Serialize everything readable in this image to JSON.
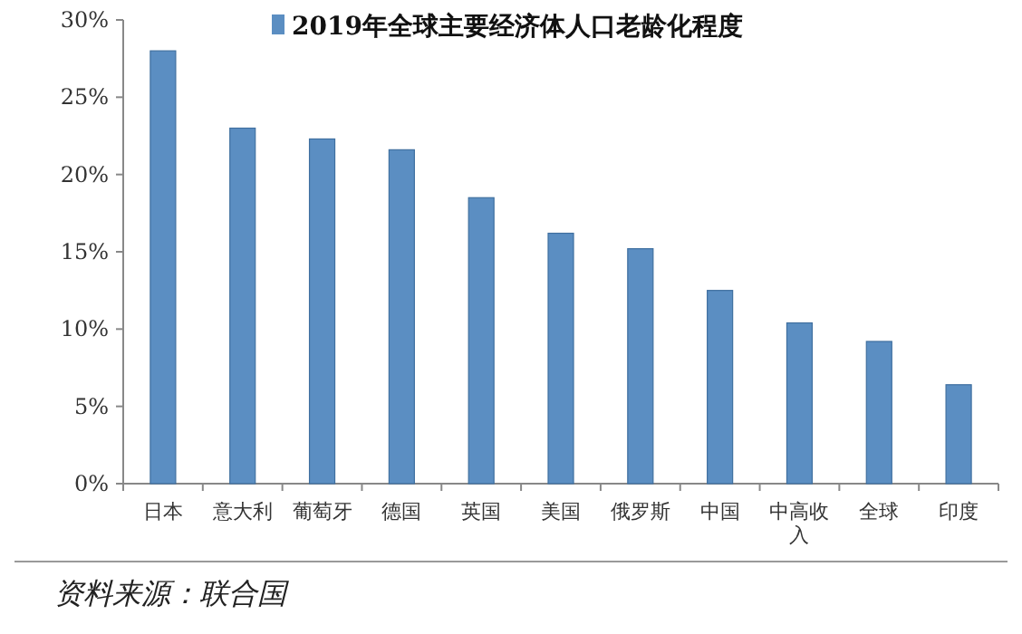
{
  "chart_data": {
    "type": "bar",
    "categories": [
      "日本",
      "意大利",
      "葡萄牙",
      "德国",
      "英国",
      "美国",
      "俄罗斯",
      "中国",
      "中高收入",
      "全球",
      "印度"
    ],
    "series": [
      {
        "name": "2019年全球主要经济体人口老龄化程度",
        "color": "#5b8ec2",
        "values": [
          28.0,
          23.0,
          22.3,
          21.6,
          18.5,
          16.2,
          15.2,
          12.5,
          10.4,
          9.2,
          6.4
        ]
      }
    ],
    "ylim": [
      0,
      30
    ],
    "yticks": [
      {
        "value": 0,
        "label": "0%"
      },
      {
        "value": 5,
        "label": "5%"
      },
      {
        "value": 10,
        "label": "10%"
      },
      {
        "value": 15,
        "label": "15%"
      },
      {
        "value": 20,
        "label": "20%"
      },
      {
        "value": 25,
        "label": "25%"
      },
      {
        "value": 30,
        "label": "30%"
      }
    ],
    "legend": "top",
    "grid": false,
    "annotations": [
      "资料来源：联合国"
    ]
  }
}
